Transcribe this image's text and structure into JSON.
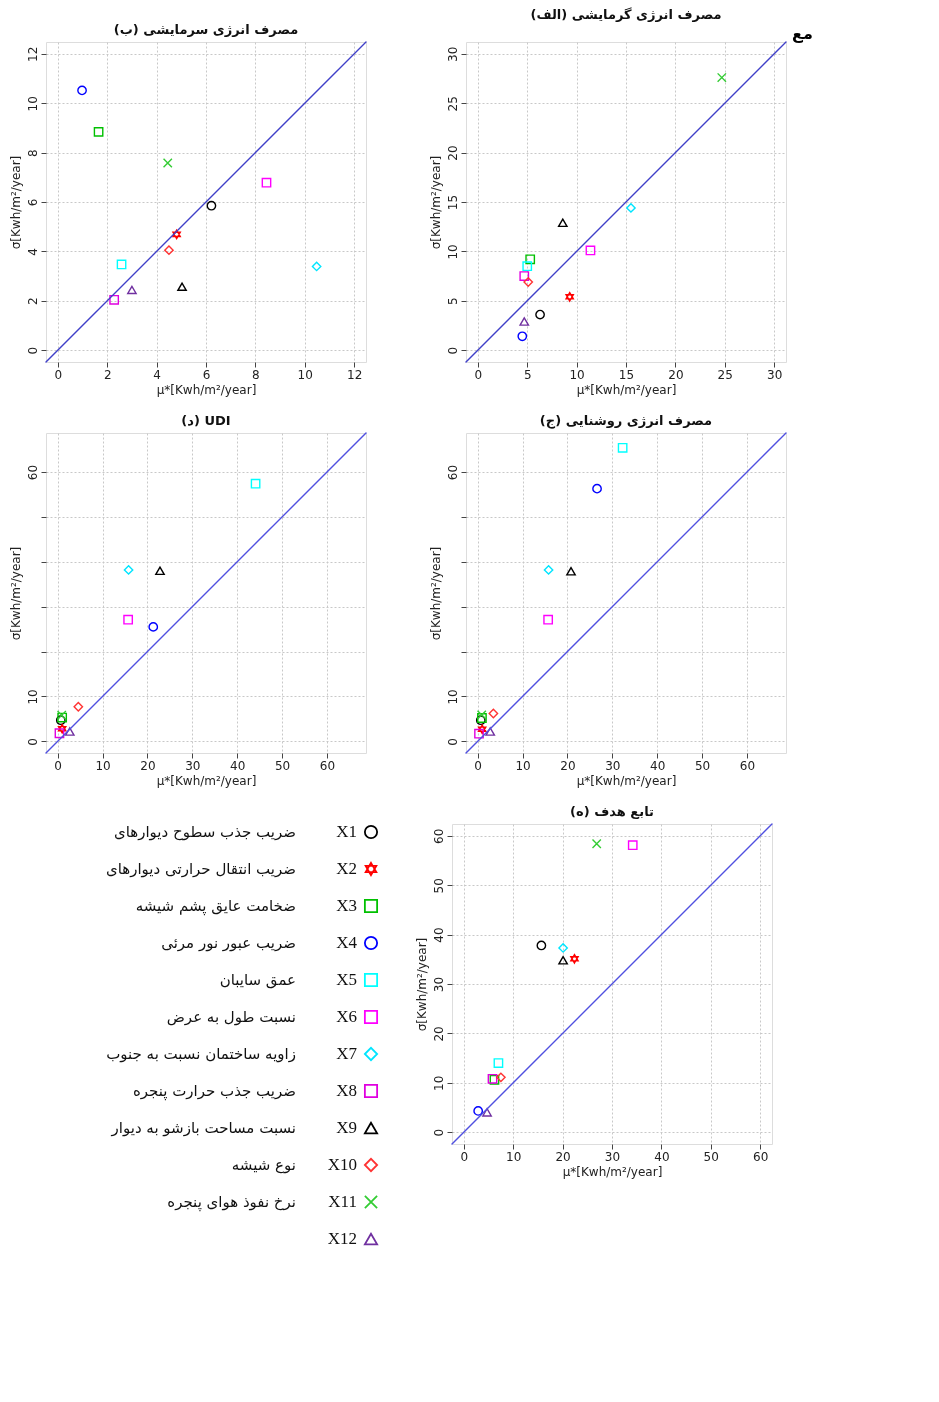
{
  "chart_data": [
    {
      "type": "scatter",
      "title": "(ب) مصرف انرژی سرمایشی",
      "xlabel": "μ*[Kwh/m²/year]",
      "ylabel": "σ[Kwh/m²/year]",
      "xlim": [
        -0.48,
        12.48
      ],
      "ylim": [
        -0.48,
        12.48
      ],
      "xticks": [
        0,
        2,
        4,
        6,
        8,
        10,
        12
      ],
      "yticks": [
        0,
        2,
        4,
        6,
        8,
        10,
        12
      ],
      "grid": true,
      "series": [
        {
          "color": "#000000",
          "marker": "circle",
          "x": [
            6.22
          ],
          "values": [
            5.85
          ]
        },
        {
          "color": "#ff0000",
          "marker": "star",
          "x": [
            4.81
          ],
          "values": [
            4.69
          ]
        },
        {
          "color": "#00c000",
          "marker": "square",
          "x": [
            1.65
          ],
          "values": [
            8.84
          ]
        },
        {
          "color": "#0000ff",
          "marker": "circle",
          "x": [
            0.98
          ],
          "values": [
            10.52
          ]
        },
        {
          "color": "#00ffff",
          "marker": "square",
          "x": [
            2.58
          ],
          "values": [
            3.47
          ]
        },
        {
          "color": "#ff00ff",
          "marker": "square",
          "x": [
            8.45
          ],
          "values": [
            6.78
          ]
        },
        {
          "color": "#00e5ff",
          "marker": "diamond",
          "x": [
            10.48
          ],
          "values": [
            3.39
          ]
        },
        {
          "color": "#e000e0",
          "marker": "square",
          "x": [
            2.28
          ],
          "values": [
            2.04
          ]
        },
        {
          "color": "#000000",
          "marker": "triangle",
          "x": [
            5.03
          ],
          "values": [
            2.57
          ]
        },
        {
          "color": "#ff3333",
          "marker": "diamond",
          "x": [
            4.5
          ],
          "values": [
            4.05
          ]
        },
        {
          "color": "#33cc33",
          "marker": "cross",
          "x": [
            4.45
          ],
          "values": [
            7.58
          ]
        },
        {
          "color": "#7030a0",
          "marker": "triangle",
          "x": [
            3.0
          ],
          "values": [
            2.44
          ]
        },
        {
          "type": "line",
          "line_style": "solid",
          "color": "#4040c8",
          "x": [
            -0.48,
            12.48
          ],
          "values": [
            -0.48,
            12.48
          ]
        }
      ]
    },
    {
      "type": "scatter",
      "title": "(الف) مصرف انرژی گرمایشی",
      "xlabel": "μ*[Kwh/m²/year]",
      "ylabel": "σ[Kwh/m²/year]",
      "xlim": [
        -1.2,
        31.2
      ],
      "ylim": [
        -1.2,
        31.2
      ],
      "xticks": [
        0,
        5,
        10,
        15,
        20,
        25,
        30
      ],
      "yticks": [
        0,
        5,
        10,
        15,
        20,
        25,
        30
      ],
      "grid": true,
      "annotations": [
        "مع"
      ],
      "series": [
        {
          "color": "#000000",
          "marker": "circle",
          "x": [
            6.3
          ],
          "values": [
            3.6
          ]
        },
        {
          "color": "#ff0000",
          "marker": "star",
          "x": [
            9.3
          ],
          "values": [
            5.4
          ]
        },
        {
          "color": "#00c000",
          "marker": "square",
          "x": [
            5.3
          ],
          "values": [
            9.2
          ]
        },
        {
          "color": "#0000ff",
          "marker": "circle",
          "x": [
            4.5
          ],
          "values": [
            1.4
          ]
        },
        {
          "color": "#00ffff",
          "marker": "square",
          "x": [
            5.0
          ],
          "values": [
            8.5
          ]
        },
        {
          "color": "#ff00ff",
          "marker": "square",
          "x": [
            11.4
          ],
          "values": [
            10.1
          ]
        },
        {
          "color": "#00e5ff",
          "marker": "diamond",
          "x": [
            15.5
          ],
          "values": [
            14.4
          ]
        },
        {
          "color": "#e000e0",
          "marker": "square",
          "x": [
            4.7
          ],
          "values": [
            7.5
          ]
        },
        {
          "color": "#000000",
          "marker": "triangle",
          "x": [
            8.6
          ],
          "values": [
            12.9
          ]
        },
        {
          "color": "#ff3333",
          "marker": "diamond",
          "x": [
            5.1
          ],
          "values": [
            6.9
          ]
        },
        {
          "color": "#33cc33",
          "marker": "cross",
          "x": [
            24.7
          ],
          "values": [
            27.6
          ]
        },
        {
          "color": "#7030a0",
          "marker": "triangle",
          "x": [
            4.7
          ],
          "values": [
            2.9
          ]
        },
        {
          "type": "line",
          "line_style": "solid",
          "color": "#4040c8",
          "x": [
            -1.2,
            31.2
          ],
          "values": [
            -1.2,
            31.2
          ]
        }
      ]
    },
    {
      "type": "scatter",
      "title": "(د) UDI",
      "xlabel": "μ*[Kwh/m²/year]",
      "ylabel": "σ[Kwh/m²/year]",
      "xlim": [
        -2.6,
        68.7
      ],
      "ylim": [
        -2.6,
        68.7
      ],
      "xticks": [
        0,
        10,
        20,
        30,
        40,
        50,
        60
      ],
      "yticks": [
        0,
        10,
        {
          "value": 20,
          "label": null
        },
        {
          "value": 30,
          "label": null
        },
        {
          "value": 40,
          "label": null
        },
        {
          "value": 50,
          "label": null
        },
        60
      ],
      "grid": true,
      "series": [
        {
          "color": "#000000",
          "marker": "circle",
          "x": [
            0.7
          ],
          "values": [
            4.7
          ]
        },
        {
          "color": "#ff0000",
          "marker": "star",
          "x": [
            1.0
          ],
          "values": [
            2.8
          ]
        },
        {
          "color": "#00c000",
          "marker": "square",
          "x": [
            1.0
          ],
          "values": [
            5.3
          ]
        },
        {
          "color": "#0000ff",
          "marker": "circle",
          "x": [
            21.3
          ],
          "values": [
            25.5
          ]
        },
        {
          "color": "#00ffff",
          "marker": "square",
          "x": [
            44.1
          ],
          "values": [
            57.4
          ]
        },
        {
          "color": "#ff00ff",
          "marker": "square",
          "x": [
            15.7
          ],
          "values": [
            27.1
          ]
        },
        {
          "color": "#00e5ff",
          "marker": "diamond",
          "x": [
            15.8
          ],
          "values": [
            38.2
          ]
        },
        {
          "color": "#e000e0",
          "marker": "square",
          "x": [
            0.4
          ],
          "values": [
            1.8
          ]
        },
        {
          "color": "#000000",
          "marker": "triangle",
          "x": [
            22.8
          ],
          "values": [
            38.0
          ]
        },
        {
          "color": "#ff3333",
          "marker": "diamond",
          "x": [
            4.6
          ],
          "values": [
            7.7
          ]
        },
        {
          "color": "#33cc33",
          "marker": "cross",
          "x": [
            0.9
          ],
          "values": [
            5.8
          ]
        },
        {
          "color": "#7030a0",
          "marker": "triangle",
          "x": [
            2.7
          ],
          "values": [
            2.2
          ]
        },
        {
          "type": "line",
          "line_style": "solid",
          "color": "#5050e0",
          "x": [
            -2.6,
            68.7
          ],
          "values": [
            -2.6,
            68.7
          ]
        }
      ]
    },
    {
      "type": "scatter",
      "title": "(ج) مصرف انرژی روشنایی",
      "xlabel": "μ*[Kwh/m²/year]",
      "ylabel": "σ[Kwh/m²/year]",
      "xlim": [
        -2.6,
        68.7
      ],
      "ylim": [
        -2.6,
        68.7
      ],
      "xticks": [
        0,
        10,
        20,
        30,
        40,
        50,
        60
      ],
      "yticks": [
        0,
        10,
        {
          "value": 20,
          "label": null
        },
        {
          "value": 30,
          "label": null
        },
        {
          "value": 40,
          "label": null
        },
        {
          "value": 50,
          "label": null
        },
        60
      ],
      "grid": true,
      "series": [
        {
          "color": "#000000",
          "marker": "circle",
          "x": [
            0.7
          ],
          "values": [
            4.7
          ]
        },
        {
          "color": "#ff0000",
          "marker": "star",
          "x": [
            1.0
          ],
          "values": [
            2.7
          ]
        },
        {
          "color": "#00c000",
          "marker": "square",
          "x": [
            0.95
          ],
          "values": [
            5.2
          ]
        },
        {
          "color": "#0000ff",
          "marker": "circle",
          "x": [
            26.6
          ],
          "values": [
            56.3
          ]
        },
        {
          "color": "#00ffff",
          "marker": "square",
          "x": [
            32.3
          ],
          "values": [
            65.4
          ]
        },
        {
          "color": "#ff00ff",
          "marker": "square",
          "x": [
            15.7
          ],
          "values": [
            27.1
          ]
        },
        {
          "color": "#00e5ff",
          "marker": "diamond",
          "x": [
            15.8
          ],
          "values": [
            38.2
          ]
        },
        {
          "color": "#e000e0",
          "marker": "square",
          "x": [
            0.3
          ],
          "values": [
            1.7
          ]
        },
        {
          "color": "#000000",
          "marker": "triangle",
          "x": [
            20.8
          ],
          "values": [
            37.9
          ]
        },
        {
          "color": "#ff3333",
          "marker": "diamond",
          "x": [
            3.5
          ],
          "values": [
            6.2
          ]
        },
        {
          "color": "#33cc33",
          "marker": "cross",
          "x": [
            0.9
          ],
          "values": [
            5.9
          ]
        },
        {
          "color": "#7030a0",
          "marker": "triangle",
          "x": [
            2.8
          ],
          "values": [
            2.2
          ]
        },
        {
          "type": "line",
          "line_style": "solid",
          "color": "#5050e0",
          "x": [
            -2.6,
            68.7
          ],
          "values": [
            -2.6,
            68.7
          ]
        }
      ]
    },
    {
      "type": "other",
      "annotations": [
        "ضریب جذب سطوح دیوارهای",
        "ضریب انتقال حرارتی دیوارهای",
        "ضخامت عایق پشم شیشه",
        "ضریب عبور نور مرئی",
        "عمق سایبان",
        "نسبت طول به عرض",
        "زاویه ساختمان نسبت به جنوب",
        "ضریب جذب حرارت پنجره",
        "نسبت مساحت بازشو به دیوار",
        "نوع شیشه",
        "نرخ نفوذ هوای پنجره"
      ]
    },
    {
      "type": "scatter",
      "title": "(ه) تابع هدف",
      "xlabel": "μ*[Kwh/m²/year]",
      "ylabel": "σ[Kwh/m²/year]",
      "xlim": [
        -2.4,
        62.4
      ],
      "ylim": [
        -2.4,
        62.4
      ],
      "xticks": [
        0,
        10,
        20,
        30,
        40,
        50,
        60
      ],
      "yticks": [
        0,
        10,
        20,
        30,
        40,
        50,
        60
      ],
      "grid": true,
      "legend": "left",
      "series": [
        {
          "name": "X1",
          "color": "#000000",
          "marker": "circle",
          "x": [
            15.7
          ],
          "values": [
            37.8
          ]
        },
        {
          "name": "X2",
          "color": "#ff0000",
          "marker": "star",
          "x": [
            22.4
          ],
          "values": [
            35.1
          ]
        },
        {
          "name": "X3",
          "color": "#00c000",
          "marker": "square",
          "x": [
            6.2
          ],
          "values": [
            10.6
          ]
        },
        {
          "name": "X4",
          "color": "#0000ff",
          "marker": "circle",
          "x": [
            2.9
          ],
          "values": [
            4.3
          ]
        },
        {
          "name": "X5",
          "color": "#00ffff",
          "marker": "square",
          "x": [
            7.0
          ],
          "values": [
            14.0
          ]
        },
        {
          "name": "X6",
          "color": "#ff00ff",
          "marker": "square",
          "x": [
            34.2
          ],
          "values": [
            58.1
          ]
        },
        {
          "name": "X7",
          "color": "#00e5ff",
          "marker": "diamond",
          "x": [
            20.1
          ],
          "values": [
            37.3
          ]
        },
        {
          "name": "X8",
          "color": "#e000e0",
          "marker": "square",
          "x": [
            5.8
          ],
          "values": [
            10.8
          ]
        },
        {
          "name": "X9",
          "color": "#000000",
          "marker": "triangle",
          "x": [
            20.1
          ],
          "values": [
            34.8
          ]
        },
        {
          "name": "X10",
          "color": "#ff3333",
          "marker": "diamond",
          "x": [
            7.5
          ],
          "values": [
            11.1
          ]
        },
        {
          "name": "X11",
          "color": "#33cc33",
          "marker": "cross",
          "x": [
            26.9
          ],
          "values": [
            58.4
          ]
        },
        {
          "name": "X12",
          "color": "#7030a0",
          "marker": "triangle",
          "x": [
            4.7
          ],
          "values": [
            4.0
          ]
        },
        {
          "type": "line",
          "line_style": "solid",
          "color": "#5050e0",
          "x": [
            -2.4,
            62.4
          ],
          "values": [
            -2.4,
            62.4
          ]
        }
      ]
    }
  ]
}
